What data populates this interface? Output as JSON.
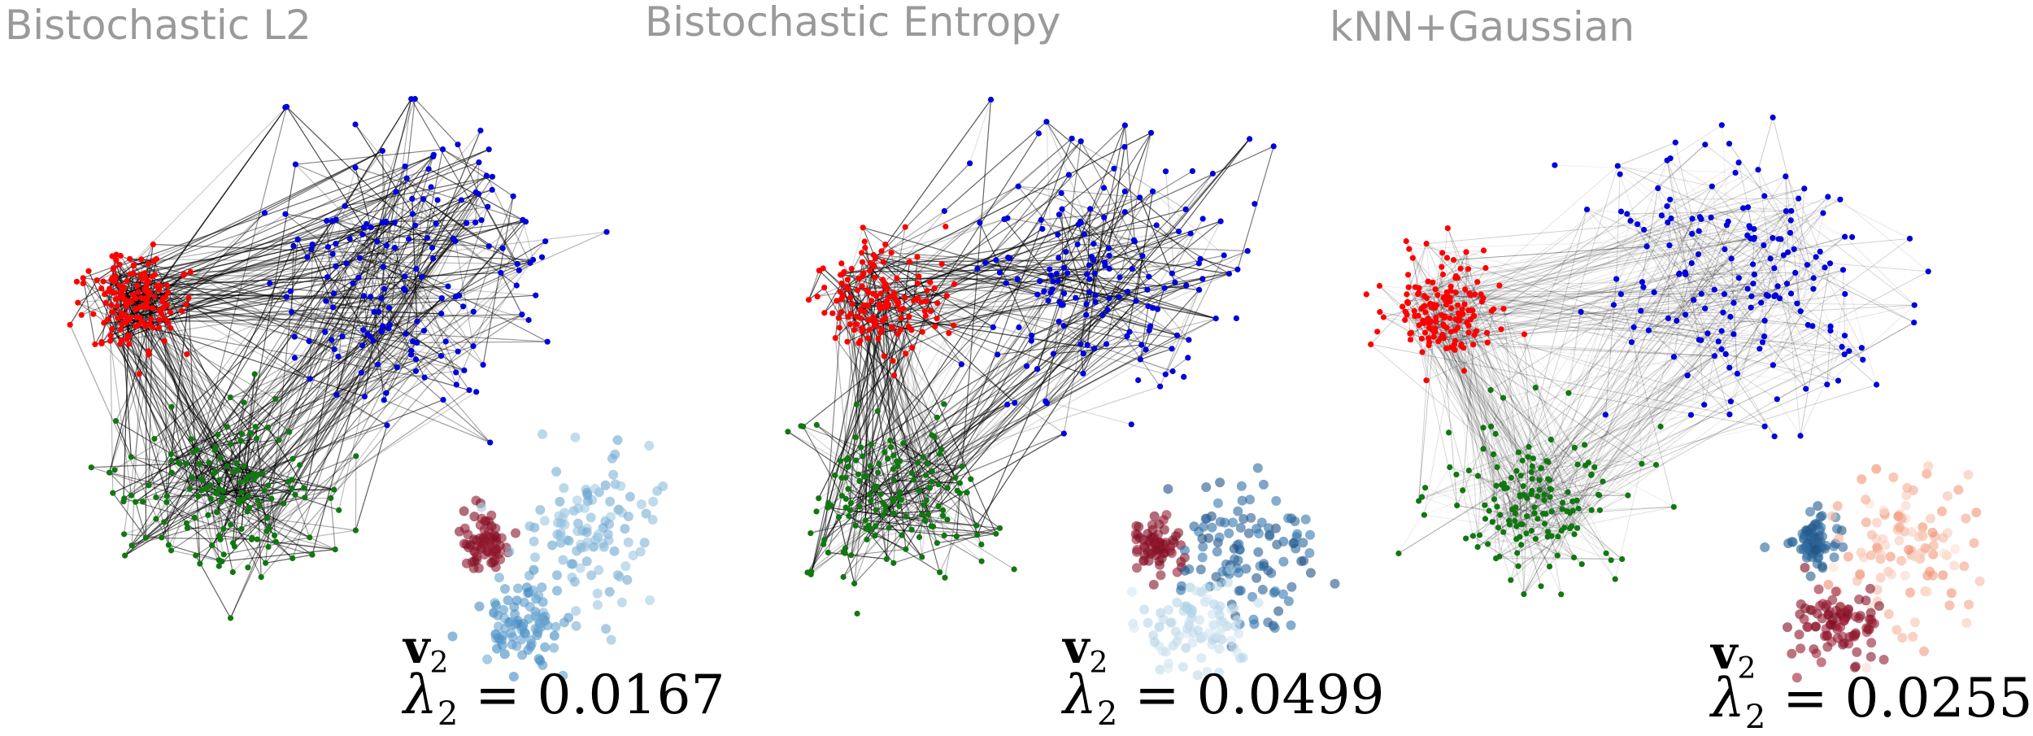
{
  "panels": [
    {
      "title": "Bistochastic L2",
      "vector_label": "v",
      "vector_sub": "2",
      "lambda_symbol": "λ",
      "lambda_sub": "2",
      "lambda_value": "0.0167",
      "lambda_text": "= 0.0167",
      "edge_style": "dense-dark",
      "inset_palette": "blue-cluster-red-minority"
    },
    {
      "title": "Bistochastic Entropy",
      "vector_label": "v",
      "vector_sub": "2",
      "lambda_symbol": "λ",
      "lambda_sub": "2",
      "lambda_value": "0.0499",
      "lambda_text": "= 0.0499",
      "edge_style": "sparse-mixed",
      "inset_palette": "blue-gradient-red-minority"
    },
    {
      "title": "kNN+Gaussian",
      "vector_label": "v",
      "vector_sub": "2",
      "lambda_symbol": "λ",
      "lambda_sub": "2",
      "lambda_value": "0.0255",
      "lambda_text": "= 0.0255",
      "edge_style": "dense-light",
      "inset_palette": "blue-minority-red-cluster"
    }
  ],
  "colors": {
    "cluster_red": "#ff0000",
    "cluster_blue": "#0000dd",
    "cluster_green": "#117711",
    "edge": "#000000",
    "title": "#9a9a9a",
    "inset_dark_red": "#7a0a1e",
    "inset_blue": "#3a86c0",
    "inset_light_blue": "#a7cde4",
    "inset_navy": "#1f4e7f",
    "inset_salmon": "#f08a6a"
  }
}
